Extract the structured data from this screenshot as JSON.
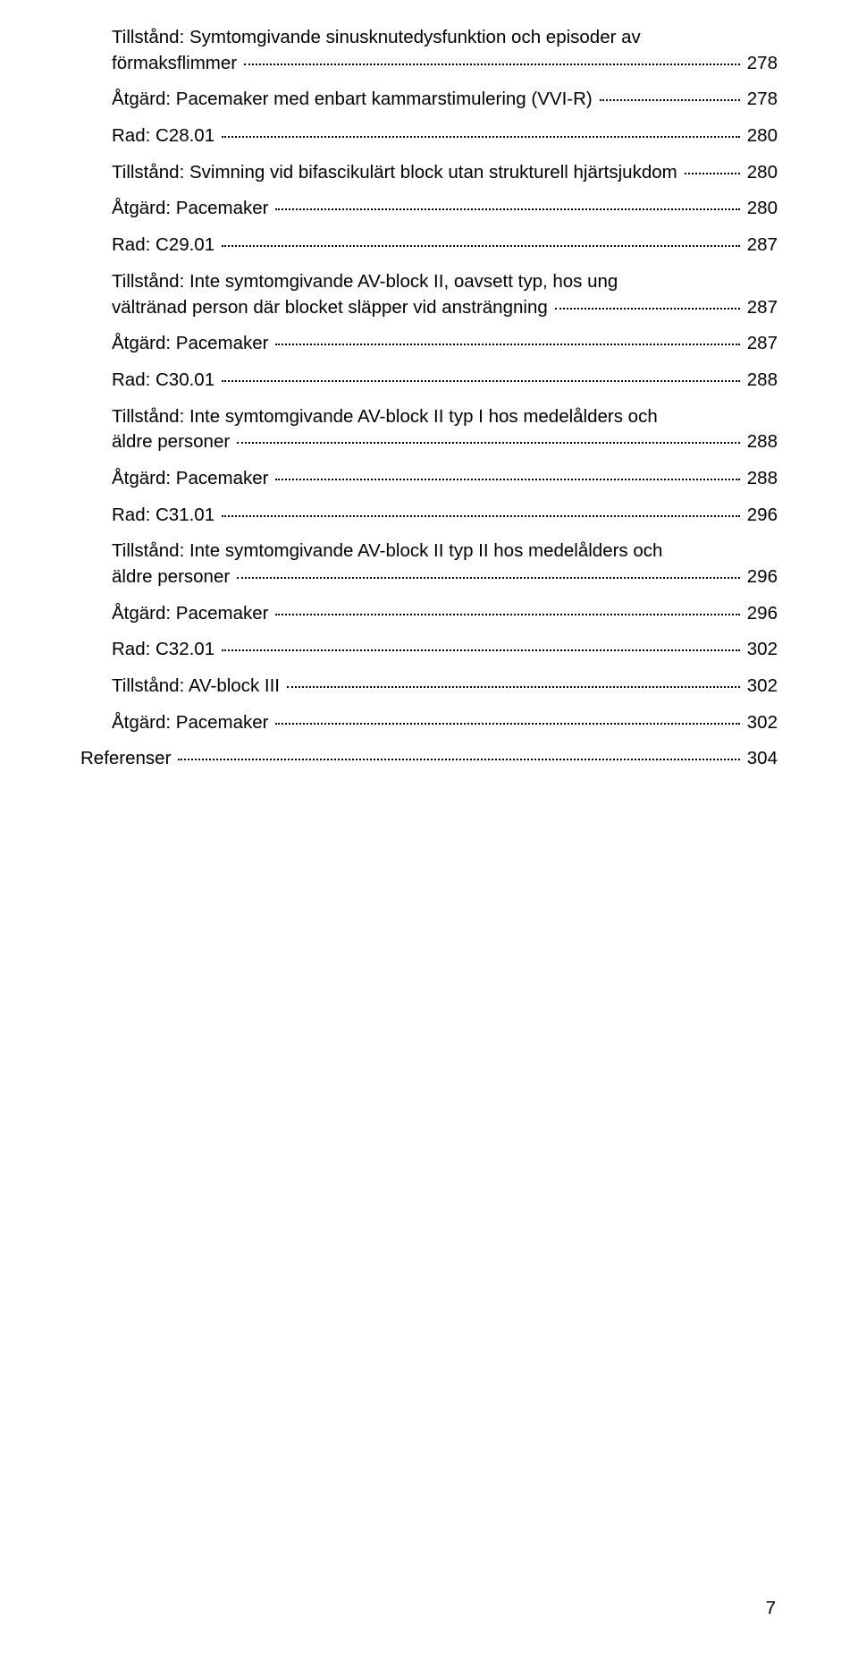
{
  "toc": {
    "entries": [
      {
        "line1": "Tillstånd: Symtomgivande sinusknutedysfunktion och episoder av",
        "line2": "förmaksflimmer",
        "page": "278"
      },
      {
        "label": "Åtgärd: Pacemaker med enbart kammarstimulering (VVI-R)",
        "page": "278"
      },
      {
        "label": "Rad: C28.01",
        "page": "280"
      },
      {
        "label": "Tillstånd: Svimning vid bifascikulärt block utan strukturell hjärtsjukdom",
        "page": "280"
      },
      {
        "label": "Åtgärd: Pacemaker",
        "page": "280"
      },
      {
        "label": "Rad: C29.01",
        "page": "287"
      },
      {
        "line1": "Tillstånd: Inte symtomgivande AV-block II, oavsett typ, hos ung",
        "line2": "vältränad person där blocket släpper vid ansträngning",
        "page": "287"
      },
      {
        "label": "Åtgärd: Pacemaker",
        "page": "287"
      },
      {
        "label": "Rad: C30.01",
        "page": "288"
      },
      {
        "line1": "Tillstånd: Inte symtomgivande AV-block II typ I hos medelålders och",
        "line2": "äldre personer",
        "page": "288"
      },
      {
        "label": "Åtgärd: Pacemaker",
        "page": "288"
      },
      {
        "label": "Rad: C31.01",
        "page": "296"
      },
      {
        "line1": "Tillstånd: Inte symtomgivande AV-block II typ II hos medelålders och",
        "line2": "äldre personer",
        "page": "296"
      },
      {
        "label": "Åtgärd: Pacemaker",
        "page": "296"
      },
      {
        "label": "Rad: C32.01",
        "page": "302"
      },
      {
        "label": "Tillstånd: AV-block III",
        "page": "302"
      },
      {
        "label": "Åtgärd: Pacemaker",
        "page": "302"
      },
      {
        "label": "Referenser",
        "page": "304",
        "outdent": true
      }
    ]
  },
  "page_number": "7"
}
